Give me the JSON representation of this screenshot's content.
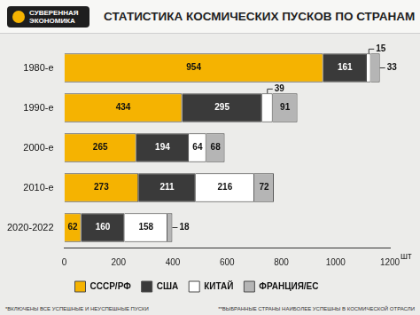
{
  "logo": "СУВЕРЕННАЯ ЭКОНОМИКА",
  "notes": [
    "*ВКЛЮЧЕНЫ ВСЕ УСПЕШНЫЕ И НЕУСПЕШНЫЕ ПУСКИ",
    "**ВЫБРАННЫЕ СТРАНЫ НАИБОЛЕЕ УСПЕШНЫ В КОСМИЧЕСКОЙ ОТРАСЛИ"
  ],
  "chart_data": {
    "type": "bar",
    "orientation": "horizontal",
    "stacked": true,
    "data_labels": true,
    "grid": false,
    "legend": "bottom",
    "title": "СТАТИСТИКА КОСМИЧЕСКИХ ПУСКОВ ПО СТРАНАМ",
    "xlabel": "шт",
    "categories": [
      "1980-е",
      "1990-е",
      "2000-е",
      "2010-е",
      "2020-2022"
    ],
    "series": [
      {
        "name": "СССР/РФ",
        "color": "#f5b301",
        "values": [
          954,
          434,
          265,
          273,
          62
        ]
      },
      {
        "name": "США",
        "color": "#3a3a3a",
        "values": [
          161,
          295,
          194,
          211,
          160
        ]
      },
      {
        "name": "КИТАЙ",
        "color": "#ffffff",
        "values": [
          15,
          39,
          64,
          216,
          158
        ]
      },
      {
        "name": "ФРАНЦИЯ/ЕС",
        "color": "#b5b5b5",
        "values": [
          33,
          91,
          68,
          72,
          18
        ]
      }
    ],
    "xlim": [
      0,
      1200
    ],
    "xticks": [
      0,
      200,
      400,
      600,
      800,
      1000,
      1200
    ]
  }
}
